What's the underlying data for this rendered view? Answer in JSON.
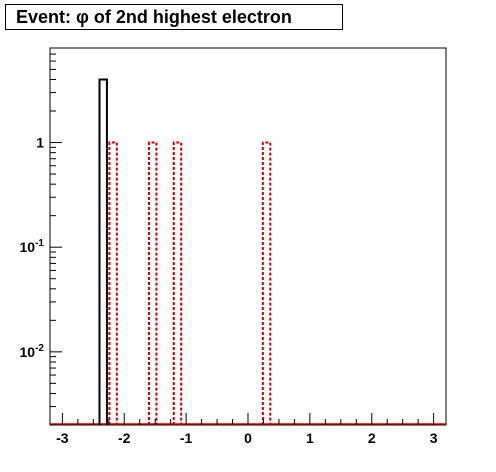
{
  "title": "Event: φ of 2nd highest electron",
  "chart_data": {
    "type": "histogram",
    "title": "Event: φ of 2nd highest electron",
    "xlabel": "",
    "ylabel": "",
    "log_y": true,
    "xlim": [
      -3.2,
      3.2
    ],
    "ylim": [
      0.002,
      8
    ],
    "x_ticks": [
      "-3",
      "-2",
      "-1",
      "0",
      "1",
      "2",
      "3"
    ],
    "y_ticks": [
      {
        "base": "1",
        "exp": ""
      },
      {
        "base": "10",
        "exp": "-1"
      },
      {
        "base": "10",
        "exp": "-2"
      }
    ],
    "grid": false,
    "legend": "none",
    "series": [
      {
        "style": "solid",
        "color": "#000000",
        "bins": [
          {
            "x0": -2.4,
            "x1": -2.28,
            "value": 4
          }
        ]
      },
      {
        "style": "dotted",
        "color": "#cc0000",
        "bins": [
          {
            "x0": -2.24,
            "x1": -2.12,
            "value": 1
          },
          {
            "x0": -1.6,
            "x1": -1.48,
            "value": 1
          },
          {
            "x0": -1.2,
            "x1": -1.08,
            "value": 1
          },
          {
            "x0": 0.24,
            "x1": 0.36,
            "value": 1
          }
        ]
      }
    ]
  }
}
